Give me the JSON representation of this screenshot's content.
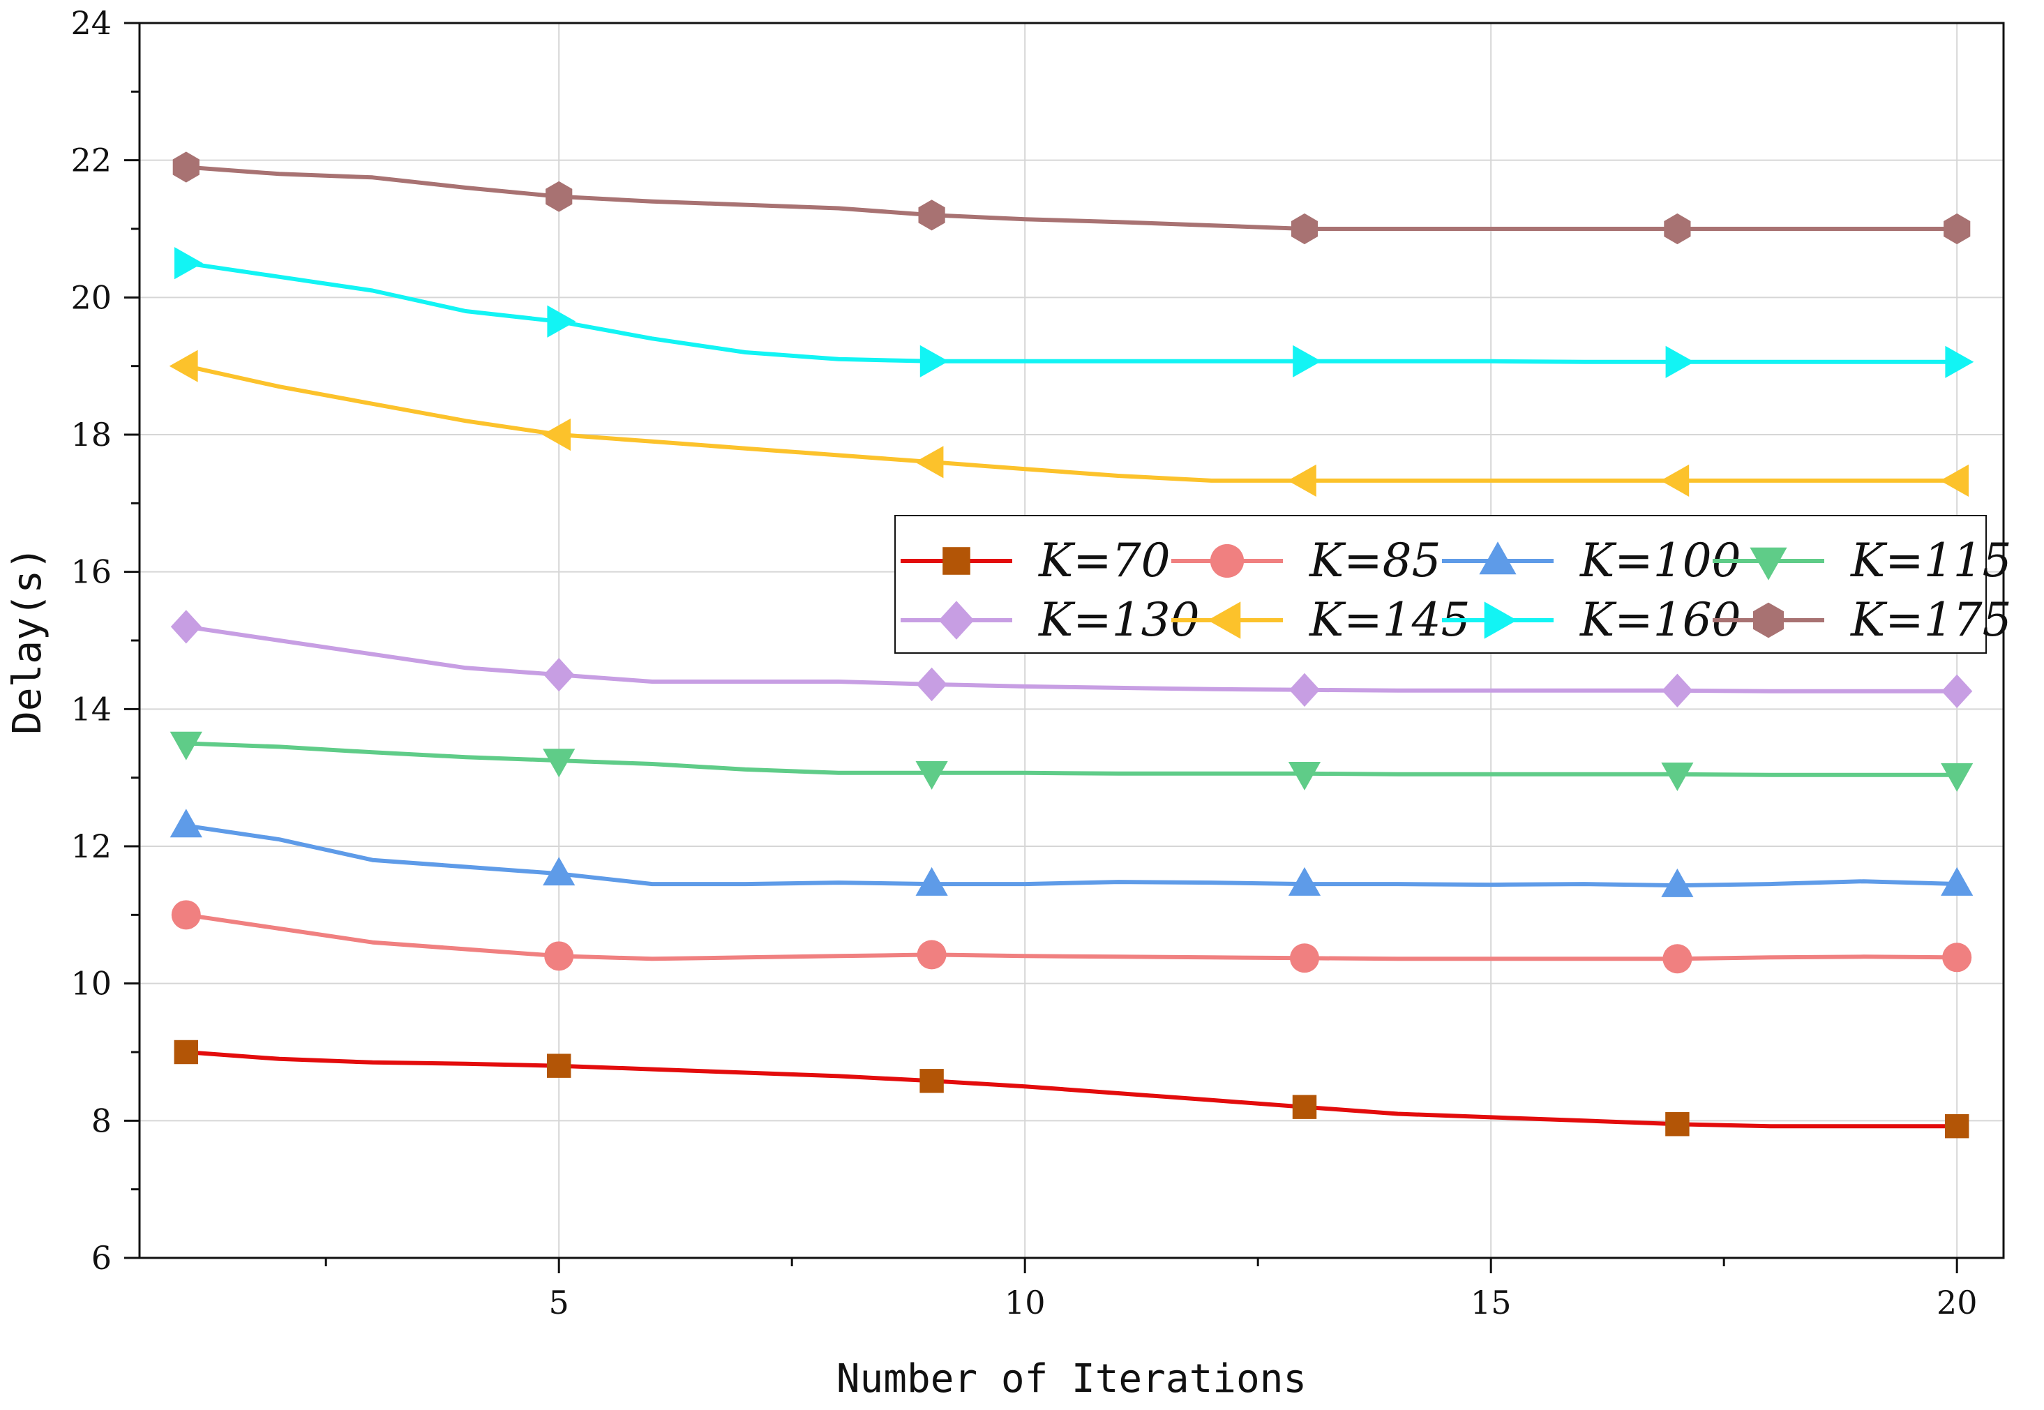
{
  "chart_data": {
    "type": "line",
    "title": "",
    "xlabel": "Number of Iterations",
    "ylabel": "Delay(s)",
    "xlim": [
      0.5,
      20.5
    ],
    "ylim": [
      6,
      24
    ],
    "xticks": [
      5,
      10,
      15,
      20
    ],
    "yticks": [
      6,
      8,
      10,
      12,
      14,
      16,
      18,
      20,
      22,
      24
    ],
    "grid": true,
    "legend_position": "center-right",
    "x": [
      1,
      2,
      3,
      4,
      5,
      6,
      7,
      8,
      9,
      10,
      11,
      12,
      13,
      14,
      15,
      16,
      17,
      18,
      19,
      20
    ],
    "marker_x": [
      1,
      5,
      9,
      13,
      17,
      20
    ],
    "series": [
      {
        "name": "K=70",
        "color": "#e30c0c",
        "marker": "square",
        "marker_color": "#b35506",
        "values": [
          9.0,
          8.9,
          8.85,
          8.83,
          8.8,
          8.75,
          8.7,
          8.65,
          8.58,
          8.5,
          8.4,
          8.3,
          8.2,
          8.1,
          8.05,
          8.0,
          7.95,
          7.92,
          7.92,
          7.92
        ]
      },
      {
        "name": "K=85",
        "color": "#f08080",
        "marker": "circle",
        "marker_color": "#f08080",
        "values": [
          11.0,
          10.8,
          10.6,
          10.5,
          10.4,
          10.36,
          10.38,
          10.4,
          10.42,
          10.4,
          10.39,
          10.38,
          10.37,
          10.36,
          10.36,
          10.36,
          10.36,
          10.38,
          10.39,
          10.38
        ]
      },
      {
        "name": "K=100",
        "color": "#5e9be8",
        "marker": "triangle-up",
        "marker_color": "#5e9be8",
        "values": [
          12.3,
          12.1,
          11.8,
          11.7,
          11.6,
          11.45,
          11.45,
          11.47,
          11.45,
          11.45,
          11.48,
          11.47,
          11.45,
          11.45,
          11.44,
          11.45,
          11.43,
          11.45,
          11.49,
          11.45
        ]
      },
      {
        "name": "K=115",
        "color": "#5fcc88",
        "marker": "triangle-down",
        "marker_color": "#5fcc88",
        "values": [
          13.5,
          13.45,
          13.37,
          13.3,
          13.25,
          13.2,
          13.12,
          13.07,
          13.07,
          13.07,
          13.06,
          13.06,
          13.06,
          13.05,
          13.05,
          13.05,
          13.05,
          13.04,
          13.04,
          13.04
        ]
      },
      {
        "name": "K=130",
        "color": "#c79ee3",
        "marker": "diamond",
        "marker_color": "#c79ee3",
        "values": [
          15.2,
          15.0,
          14.8,
          14.6,
          14.5,
          14.4,
          14.4,
          14.4,
          14.36,
          14.33,
          14.31,
          14.29,
          14.28,
          14.27,
          14.27,
          14.27,
          14.27,
          14.26,
          14.26,
          14.26
        ]
      },
      {
        "name": "K=145",
        "color": "#fcc22b",
        "marker": "triangle-left",
        "marker_color": "#fcc22b",
        "values": [
          19.0,
          18.7,
          18.45,
          18.2,
          18.0,
          17.9,
          17.8,
          17.7,
          17.6,
          17.5,
          17.4,
          17.33,
          17.33,
          17.33,
          17.33,
          17.33,
          17.33,
          17.33,
          17.33,
          17.33
        ]
      },
      {
        "name": "K=160",
        "color": "#12f4f4",
        "marker": "triangle-right",
        "marker_color": "#12f4f4",
        "values": [
          20.5,
          20.3,
          20.1,
          19.8,
          19.65,
          19.4,
          19.2,
          19.1,
          19.07,
          19.07,
          19.07,
          19.07,
          19.07,
          19.07,
          19.07,
          19.06,
          19.06,
          19.06,
          19.06,
          19.06
        ]
      },
      {
        "name": "K=175",
        "color": "#a87272",
        "marker": "hexagon",
        "marker_color": "#a87272",
        "values": [
          21.9,
          21.8,
          21.75,
          21.6,
          21.47,
          21.4,
          21.35,
          21.3,
          21.2,
          21.14,
          21.1,
          21.05,
          21.0,
          21.0,
          21.0,
          21.0,
          21.0,
          21.0,
          21.0,
          21.0
        ]
      }
    ]
  }
}
